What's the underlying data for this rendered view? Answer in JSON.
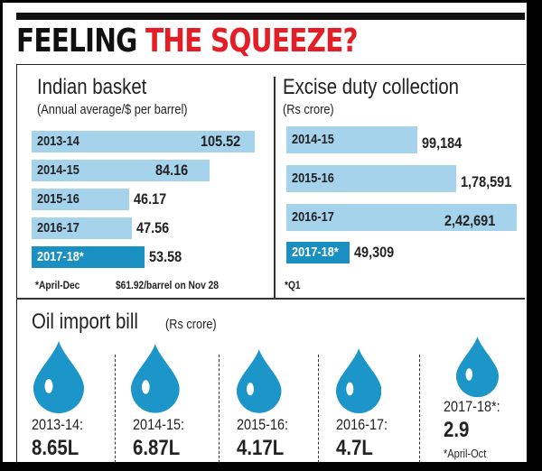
{
  "title": {
    "part1": "FEELING",
    "part2": "THE SQUEEZE?"
  },
  "chart_data": [
    {
      "type": "bar",
      "orientation": "horizontal",
      "title": "Indian basket",
      "subtitle": "(Annual average/$ per barrel)",
      "categories": [
        "2013-14",
        "2014-15",
        "2015-16",
        "2016-17",
        "2017-18*"
      ],
      "values": [
        105.52,
        84.16,
        46.17,
        47.56,
        53.58
      ],
      "labels": [
        "105.52",
        "84.16",
        "46.17",
        "47.56",
        "53.58"
      ],
      "highlight": "2017-18*",
      "footnotes": [
        "*April-Dec",
        "$61.92/barrel on Nov 28"
      ]
    },
    {
      "type": "bar",
      "orientation": "horizontal",
      "title": "Excise duty collection",
      "subtitle": "(Rs crore)",
      "categories": [
        "2014-15",
        "2015-16",
        "2016-17",
        "2017-18*"
      ],
      "values": [
        99184,
        178591,
        242691,
        49309
      ],
      "labels": [
        "99,184",
        "1,78,591",
        "2,42,691",
        "49,309"
      ],
      "highlight": "2017-18*",
      "footnotes": [
        "*Q1"
      ]
    },
    {
      "type": "pictogram",
      "icon": "oil-drop-icon",
      "title": "Oil import bill",
      "subtitle": "(Rs crore)",
      "categories": [
        "2013-14:",
        "2014-15:",
        "2015-16:",
        "2016-17:",
        "2017-18*:"
      ],
      "values": [
        8.65,
        6.87,
        4.17,
        4.7,
        2.9
      ],
      "labels": [
        "8.65L",
        "6.87L",
        "4.17L",
        "4.7L",
        "2.9"
      ],
      "footnote": "*April-Oct"
    }
  ],
  "colors": {
    "bar": "#a5d3ec",
    "highlight": "#1a90c2",
    "drop": "#1c95c8",
    "title_red": "#e41e26"
  }
}
